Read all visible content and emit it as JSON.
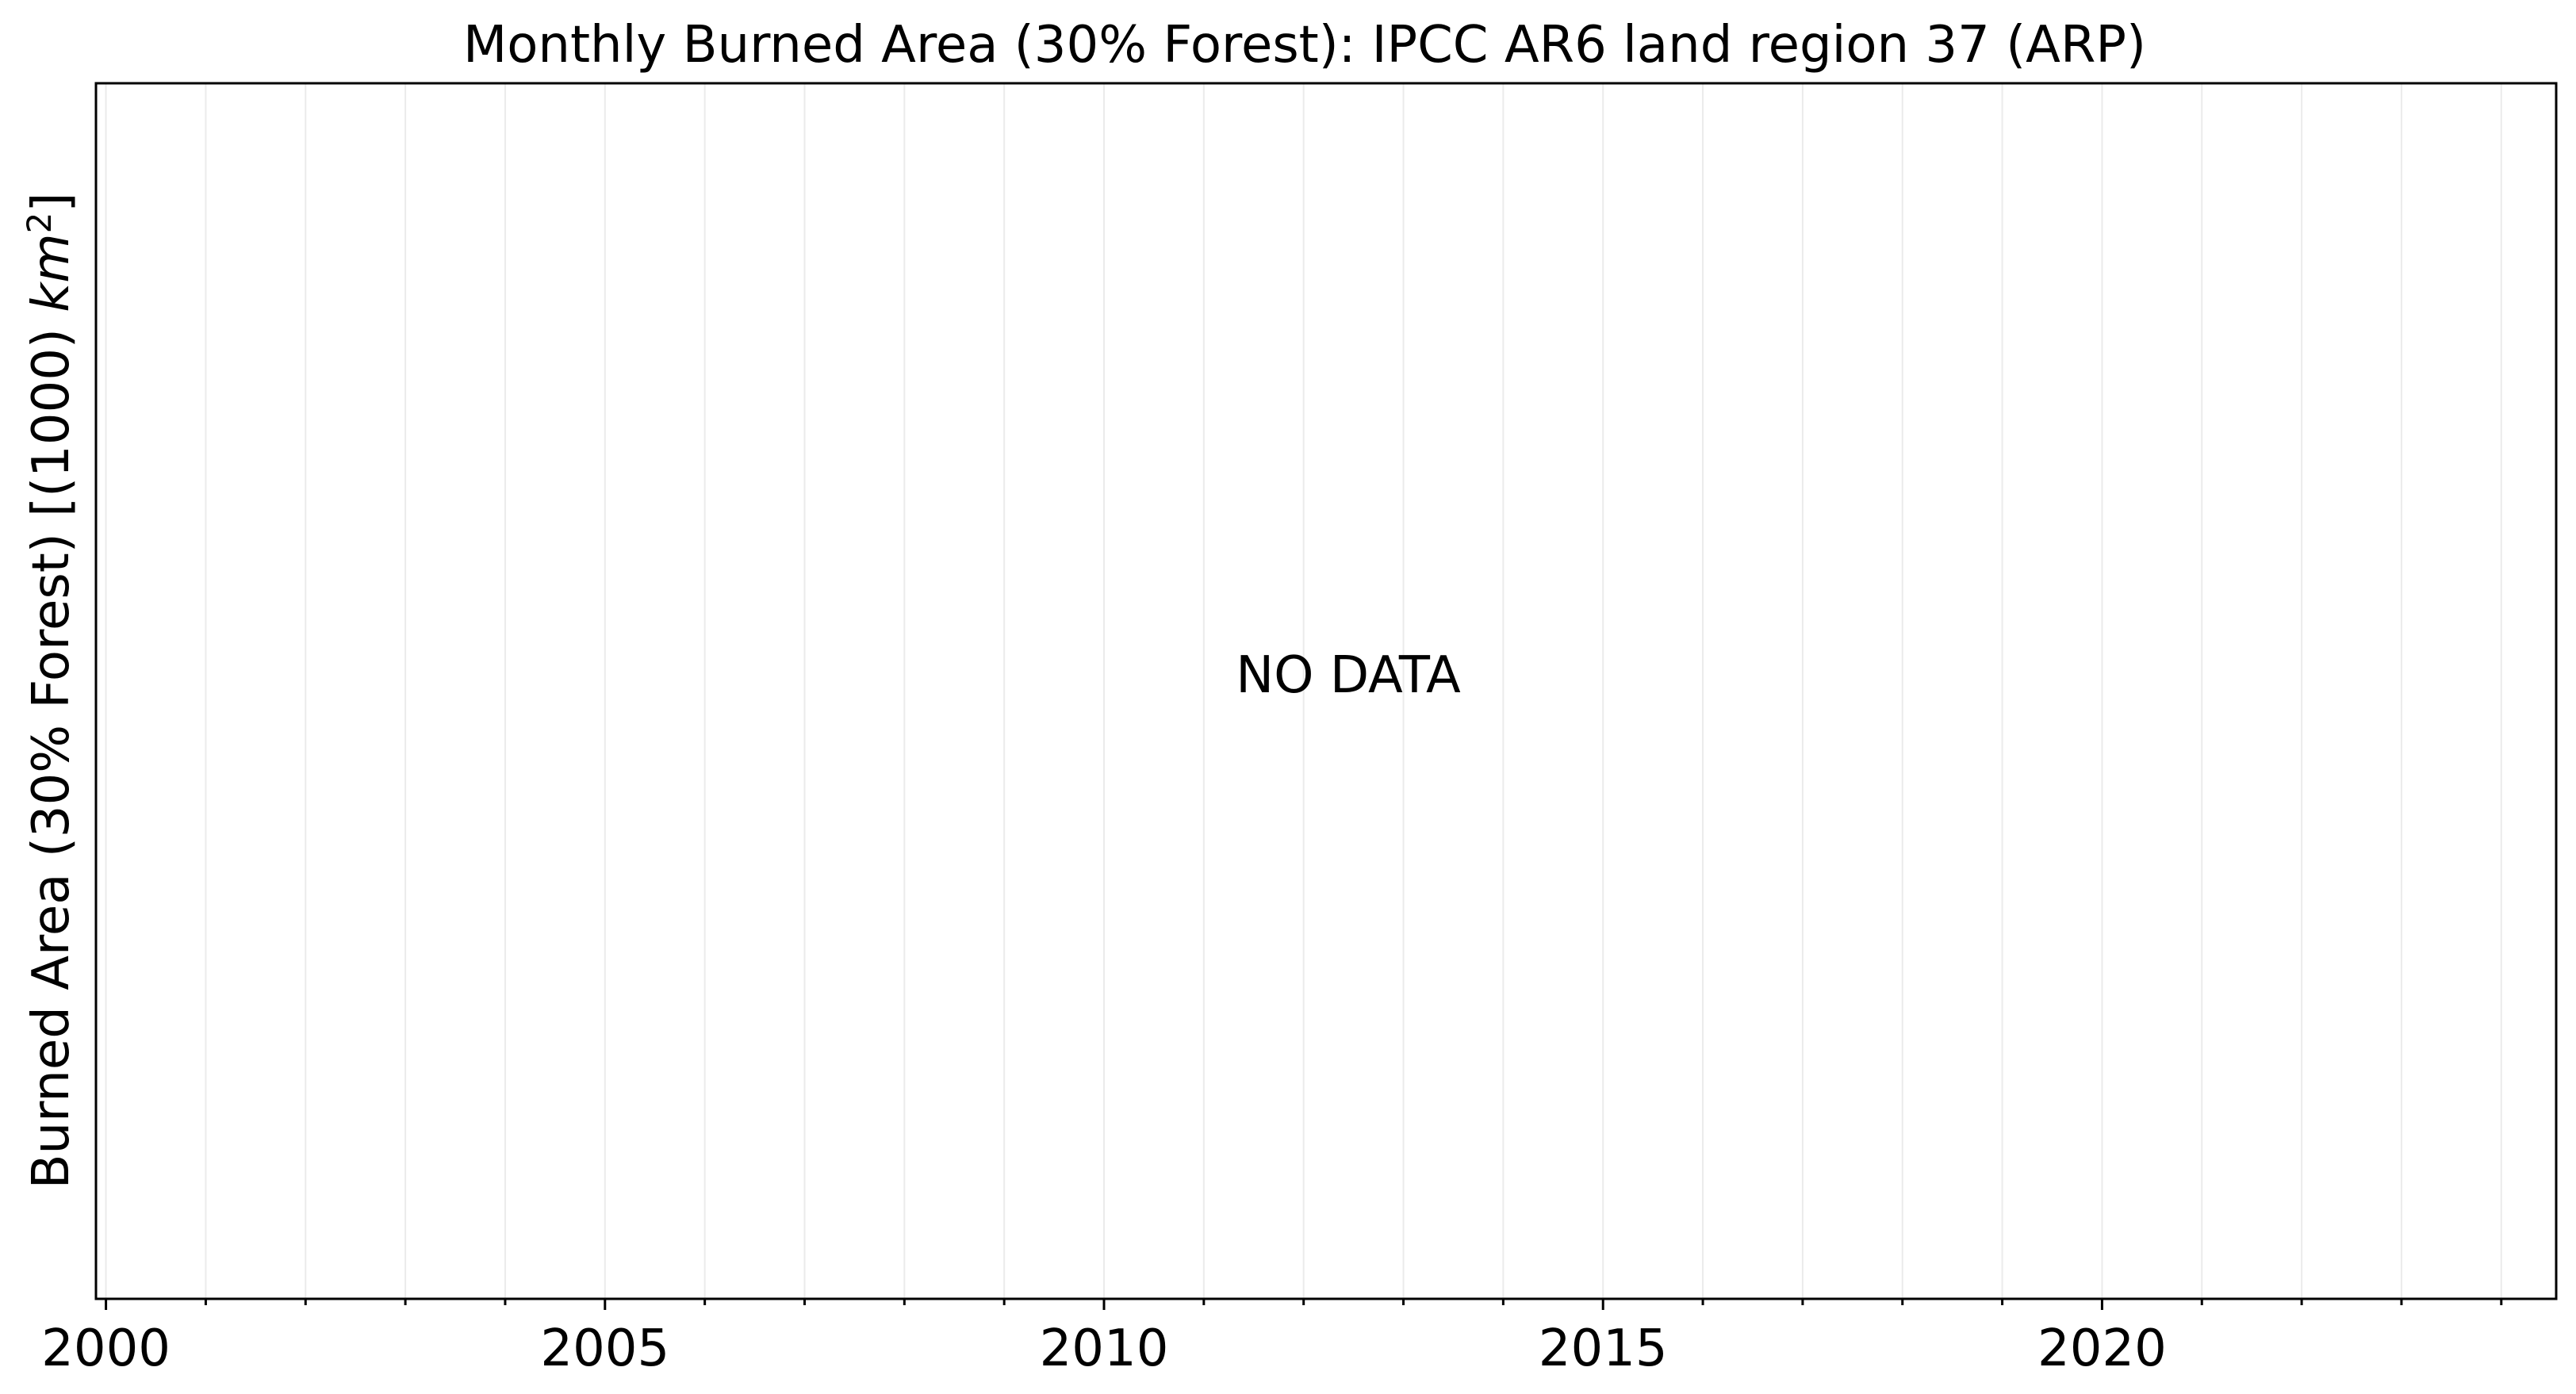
{
  "chart_data": {
    "type": "line",
    "title": "Monthly Burned Area (30% Forest): IPCC AR6 land region 37 (ARP)",
    "xlabel": "",
    "ylabel": {
      "prefix": "Burned Area (30% Forest) [(1000) ",
      "unit_base": "km",
      "unit_exp": "2",
      "suffix": "]"
    },
    "x_ticks": [
      2000,
      2005,
      2010,
      2015,
      2020
    ],
    "x_minor_ticks": [
      2001,
      2002,
      2003,
      2004,
      2006,
      2007,
      2008,
      2009,
      2011,
      2012,
      2013,
      2014,
      2016,
      2017,
      2018,
      2019,
      2021,
      2022,
      2023,
      2024
    ],
    "xlim": [
      1999.9,
      2024.55
    ],
    "grid": true,
    "series": [],
    "annotation": "NO DATA",
    "colors": {
      "axes": "#000000",
      "grid": "#ebebeb",
      "background": "#ffffff"
    }
  }
}
